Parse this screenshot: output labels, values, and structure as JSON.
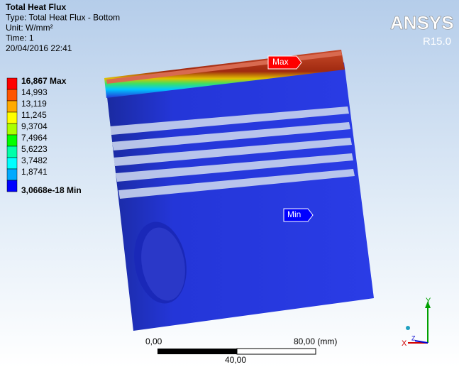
{
  "header": {
    "lines": [
      "Total Heat Flux",
      "Type: Total Heat Flux - Bottom",
      "Unit: W/mm²",
      "Time: 1",
      "20/04/2016 22:41"
    ]
  },
  "legend": {
    "items": [
      {
        "label": "16,867 Max",
        "color": "#ff0000"
      },
      {
        "label": "14,993",
        "color": "#ff5500"
      },
      {
        "label": "13,119",
        "color": "#ffaa00"
      },
      {
        "label": "11,245",
        "color": "#ffff00"
      },
      {
        "label": "9,3704",
        "color": "#aaff00"
      },
      {
        "label": "7,4964",
        "color": "#00ff00"
      },
      {
        "label": "5,6223",
        "color": "#00ffaa"
      },
      {
        "label": "3,7482",
        "color": "#00ffff"
      },
      {
        "label": "1,8741",
        "color": "#00aaff"
      },
      {
        "label": "3,0668e-18 Min",
        "color": "#0000ff"
      }
    ]
  },
  "logo": {
    "name": "ANSYS",
    "version": "R15.0"
  },
  "probes": {
    "max": "Max",
    "min": "Min"
  },
  "scale": {
    "start": "0,00",
    "end": "80,00 (mm)",
    "middle": "40,00"
  },
  "triad": {
    "x": "X",
    "y": "Y",
    "z": "Z"
  }
}
